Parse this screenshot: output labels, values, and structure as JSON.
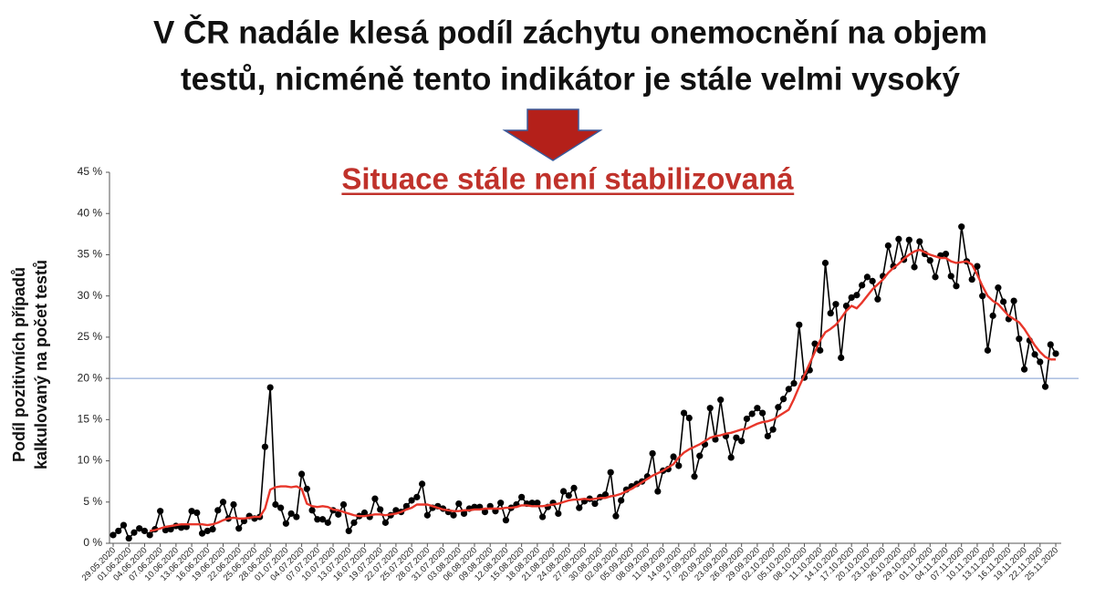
{
  "chart_data": {
    "type": "line",
    "title": [
      "V ČR nadále klesá podíl záchytu onemocnění na objem",
      "testů, nicméně tento indikátor je stále velmi vysoký"
    ],
    "subtitle": "Situace stále není stabilizovaná",
    "y_label": [
      "Podíl pozitivních případů",
      "kalkulovaný na počet testů"
    ],
    "categories": [
      "29.05.2020",
      null,
      null,
      "01.06.2020",
      null,
      null,
      "04.06.2020",
      null,
      null,
      "07.06.2020",
      null,
      null,
      "10.06.2020",
      null,
      null,
      "13.06.2020",
      null,
      null,
      "16.06.2020",
      null,
      null,
      "19.06.2020",
      null,
      null,
      "22.06.2020",
      null,
      null,
      "25.06.2020",
      null,
      null,
      "28.06.2020",
      null,
      null,
      "01.07.2020",
      null,
      null,
      "04.07.2020",
      null,
      null,
      "07.07.2020",
      null,
      null,
      "10.07.2020",
      null,
      null,
      "13.07.2020",
      null,
      null,
      "16.07.2020",
      null,
      null,
      "19.07.2020",
      null,
      null,
      "22.07.2020",
      null,
      null,
      "25.07.2020",
      null,
      null,
      "28.07.2020",
      null,
      null,
      "31.07.2020",
      null,
      null,
      "03.08.2020",
      null,
      null,
      "06.08.2020",
      null,
      null,
      "09.08.2020",
      null,
      null,
      "12.08.2020",
      null,
      null,
      "15.08.2020",
      null,
      null,
      "18.08.2020",
      null,
      null,
      "21.08.2020",
      null,
      null,
      "24.08.2020",
      null,
      null,
      "27.08.2020",
      null,
      null,
      "30.08.2020",
      null,
      null,
      "02.09.2020",
      null,
      null,
      "05.09.2020",
      null,
      null,
      "08.09.2020",
      null,
      null,
      "11.09.2020",
      null,
      null,
      "14.09.2020",
      null,
      null,
      "17.09.2020",
      null,
      null,
      "20.09.2020",
      null,
      null,
      "23.09.2020",
      null,
      null,
      "26.09.2020",
      null,
      null,
      "29.09.2020",
      null,
      null,
      "02.10.2020",
      null,
      null,
      "05.10.2020",
      null,
      null,
      "08.10.2020",
      null,
      null,
      "11.10.2020",
      null,
      null,
      "14.10.2020",
      null,
      null,
      "17.10.2020",
      null,
      null,
      "20.10.2020",
      null,
      null,
      "23.10.2020",
      null,
      null,
      "26.10.2020",
      null,
      null,
      "29.10.2020",
      null,
      null,
      "01.11.2020",
      null,
      null,
      "04.11.2020",
      null,
      null,
      "07.11.2020",
      null,
      null,
      "10.11.2020",
      null,
      null,
      "13.11.2020",
      null,
      null,
      "16.11.2020",
      null,
      null,
      "19.11.2020",
      null,
      null,
      "22.11.2020",
      null,
      null,
      "25.11.2020"
    ],
    "series": [
      {
        "color": "#000000",
        "markers": true,
        "values": [
          1.0,
          1.5,
          2.2,
          0.6,
          1.3,
          1.8,
          1.5,
          1.0,
          1.7,
          3.9,
          1.6,
          1.7,
          2.1,
          1.9,
          2.0,
          3.9,
          3.7,
          1.2,
          1.5,
          1.7,
          4.0,
          5.0,
          3.0,
          4.7,
          1.8,
          2.7,
          3.3,
          3.0,
          3.2,
          11.7,
          18.9,
          4.7,
          4.3,
          2.4,
          3.6,
          3.2,
          8.4,
          6.6,
          4.0,
          2.9,
          2.9,
          2.5,
          4.0,
          3.5,
          4.7,
          1.5,
          2.5,
          3.3,
          3.7,
          3.2,
          5.4,
          4.1,
          2.5,
          3.4,
          4.0,
          3.8,
          4.5,
          5.2,
          5.6,
          7.2,
          3.4,
          4.3,
          4.5,
          4.2,
          3.8,
          3.4,
          4.8,
          3.6,
          4.2,
          4.4,
          4.4,
          3.8,
          4.5,
          3.9,
          4.9,
          2.8,
          4.3,
          4.7,
          5.6,
          4.8,
          4.9,
          4.9,
          3.2,
          4.4,
          4.9,
          3.6,
          6.3,
          5.8,
          6.7,
          4.3,
          5.1,
          5.4,
          4.8,
          5.6,
          5.9,
          8.6,
          3.3,
          5.2,
          6.5,
          6.9,
          7.2,
          7.5,
          8.1,
          10.9,
          6.3,
          8.8,
          9.0,
          10.5,
          9.4,
          15.8,
          15.2,
          8.1,
          10.6,
          12.0,
          16.4,
          12.6,
          17.4,
          13.0,
          10.4,
          12.8,
          12.4,
          15.1,
          15.7,
          16.4,
          15.8,
          13.0,
          13.8,
          16.5,
          17.5,
          18.7,
          19.4,
          26.5,
          20.1,
          21.0,
          24.2,
          23.4,
          34.0,
          27.9,
          29.0,
          22.5,
          28.8,
          29.8,
          30.1,
          31.3,
          32.3,
          31.8,
          29.6,
          32.4,
          36.1,
          33.6,
          36.9,
          34.4,
          36.8,
          33.5,
          36.6,
          35.1,
          34.3,
          32.3,
          34.9,
          35.1,
          32.4,
          31.2,
          38.4,
          34.2,
          32.0,
          33.6,
          30.0,
          23.4,
          27.6,
          31.0,
          29.3,
          27.2,
          29.4,
          24.8,
          21.1,
          24.6,
          22.9,
          22.0,
          19.0,
          24.1,
          23.0
        ]
      },
      {
        "color": "#e8362a",
        "markers": false,
        "values": [
          null,
          null,
          null,
          null,
          null,
          null,
          null,
          1.5,
          1.6,
          1.8,
          2.0,
          2.1,
          2.2,
          2.3,
          2.3,
          2.3,
          2.3,
          2.3,
          2.2,
          2.3,
          2.5,
          2.8,
          3.0,
          3.1,
          3.0,
          3.0,
          3.1,
          3.2,
          3.2,
          4.2,
          6.5,
          6.8,
          6.9,
          6.9,
          6.8,
          6.9,
          6.6,
          4.8,
          4.5,
          4.4,
          4.5,
          4.4,
          4.1,
          4.0,
          3.8,
          3.6,
          3.4,
          3.3,
          3.3,
          3.4,
          3.5,
          3.5,
          3.4,
          3.5,
          3.6,
          3.8,
          4.1,
          4.3,
          4.7,
          4.7,
          4.7,
          4.5,
          4.3,
          4.1,
          4.0,
          3.9,
          3.9,
          4.0,
          4.0,
          4.1,
          4.1,
          4.2,
          4.2,
          4.2,
          4.2,
          4.3,
          4.3,
          4.4,
          4.6,
          4.6,
          4.5,
          4.5,
          4.5,
          4.6,
          4.7,
          4.8,
          5.0,
          5.2,
          5.3,
          5.3,
          5.4,
          5.3,
          5.4,
          5.5,
          5.5,
          5.7,
          5.8,
          6.0,
          6.3,
          6.6,
          7.0,
          7.4,
          7.8,
          8.2,
          8.5,
          8.8,
          9.2,
          9.6,
          10.4,
          11.0,
          11.4,
          11.7,
          12.0,
          12.4,
          12.8,
          13.0,
          13.1,
          13.3,
          13.4,
          13.6,
          13.8,
          13.9,
          14.2,
          14.5,
          14.7,
          14.8,
          15.0,
          15.4,
          15.8,
          16.2,
          17.5,
          19.0,
          20.4,
          21.8,
          23.2,
          24.6,
          25.6,
          26.0,
          26.5,
          27.3,
          28.2,
          28.8,
          28.5,
          29.2,
          30.0,
          30.8,
          31.4,
          32.0,
          32.8,
          33.4,
          33.9,
          34.5,
          35.0,
          35.4,
          35.6,
          35.3,
          35.0,
          34.8,
          34.6,
          34.6,
          34.2,
          34.0,
          34.1,
          34.2,
          33.8,
          32.6,
          31.2,
          30.0,
          29.4,
          29.0,
          28.3,
          27.6,
          27.2,
          26.8,
          26.0,
          25.0,
          24.0,
          23.2,
          22.6,
          22.3,
          22.3
        ]
      }
    ],
    "hlines": [
      20
    ],
    "hline_color": "#7d9bd0",
    "ylim": [
      0,
      45
    ],
    "yticks": [
      {
        "value": 0,
        "label": "0 %"
      },
      {
        "value": 5,
        "label": "5 %"
      },
      {
        "value": 10,
        "label": "10 %"
      },
      {
        "value": 15,
        "label": "15 %"
      },
      {
        "value": 20,
        "label": "20 %"
      },
      {
        "value": 25,
        "label": "25 %"
      },
      {
        "value": 30,
        "label": "30 %"
      },
      {
        "value": 35,
        "label": "35 %"
      },
      {
        "value": 40,
        "label": "40 %"
      },
      {
        "value": 45,
        "label": "45 %"
      }
    ],
    "grid": false
  }
}
